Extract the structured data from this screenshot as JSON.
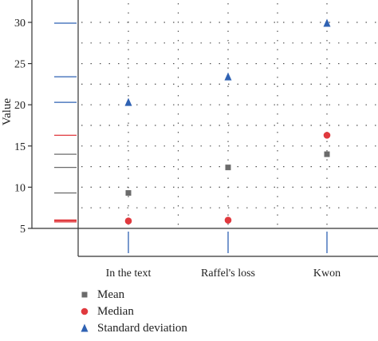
{
  "chart_data": {
    "type": "scatter",
    "title": "",
    "xlabel": "",
    "ylabel": "Value",
    "categories": [
      "In the text",
      "Raffel's loss",
      "Kwon"
    ],
    "ylim": [
      5,
      32
    ],
    "yticks": [
      5,
      10,
      15,
      20,
      25,
      30
    ],
    "grid": "dotted",
    "legend_position": "bottom-left",
    "series": [
      {
        "name": "Mean",
        "marker": "square",
        "color": "#6b6b6b",
        "values": [
          9.3,
          12.4,
          14.0
        ]
      },
      {
        "name": "Median",
        "marker": "circle",
        "color": "#e0393e",
        "values": [
          5.9,
          6.0,
          16.3
        ]
      },
      {
        "name": "Standard deviation",
        "marker": "triangle",
        "color": "#2f62b3",
        "values": [
          20.3,
          23.4,
          29.9
        ]
      }
    ],
    "rug": {
      "mean_color": "#6b6b6b",
      "median_color": "#e0393e",
      "sd_color": "#2f62b3"
    }
  }
}
